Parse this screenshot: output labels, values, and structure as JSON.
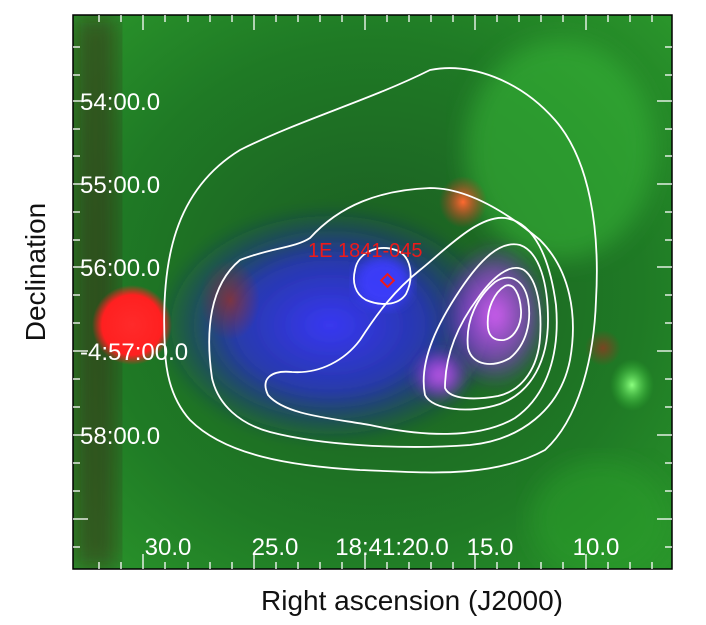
{
  "figure": {
    "y_axis_title": "Declination",
    "x_axis_title": "Right ascension  (J2000)",
    "source_label": "1E 1841-045",
    "dec_tick_labels": [
      "54:00.0",
      "55:00.0",
      "56:00.0",
      "-4:57:00.0",
      "58:00.0"
    ],
    "ra_tick_labels": [
      "30.0",
      "25.0",
      "18:41:20.0",
      "15.0",
      "10.0"
    ],
    "colors": {
      "background_green": "#1f8a1f",
      "xray_blue": "#2a2ae0",
      "infrared_red": "#ff2020",
      "contour": "#ffffff",
      "source_marker": "#ee1a1a"
    },
    "contour_levels_drawn": 7
  }
}
